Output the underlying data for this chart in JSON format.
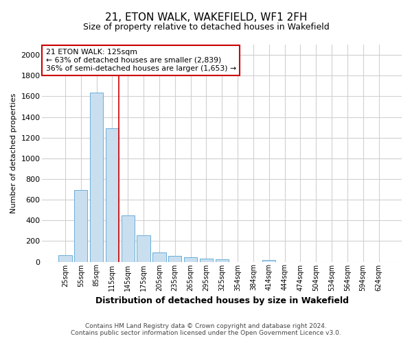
{
  "title": "21, ETON WALK, WAKEFIELD, WF1 2FH",
  "subtitle": "Size of property relative to detached houses in Wakefield",
  "xlabel": "Distribution of detached houses by size in Wakefield",
  "ylabel": "Number of detached properties",
  "bar_color": "#c9dff0",
  "bar_edge_color": "#6aaed6",
  "categories": [
    "25sqm",
    "55sqm",
    "85sqm",
    "115sqm",
    "145sqm",
    "175sqm",
    "205sqm",
    "235sqm",
    "265sqm",
    "295sqm",
    "325sqm",
    "354sqm",
    "384sqm",
    "414sqm",
    "444sqm",
    "474sqm",
    "504sqm",
    "534sqm",
    "564sqm",
    "594sqm",
    "624sqm"
  ],
  "values": [
    65,
    695,
    1635,
    1290,
    445,
    255,
    90,
    55,
    40,
    28,
    20,
    0,
    0,
    18,
    0,
    0,
    0,
    0,
    0,
    0,
    0
  ],
  "ylim": [
    0,
    2100
  ],
  "yticks": [
    0,
    200,
    400,
    600,
    800,
    1000,
    1200,
    1400,
    1600,
    1800,
    2000
  ],
  "property_bar_index": 3,
  "annotation_line1": "21 ETON WALK: 125sqm",
  "annotation_line2": "← 63% of detached houses are smaller (2,839)",
  "annotation_line3": "36% of semi-detached houses are larger (1,653) →",
  "vline_color": "#cc0000",
  "annotation_box_color": "#ffffff",
  "annotation_box_edge": "#cc0000",
  "footer_line1": "Contains HM Land Registry data © Crown copyright and database right 2024.",
  "footer_line2": "Contains public sector information licensed under the Open Government Licence v3.0.",
  "background_color": "#ffffff",
  "grid_color": "#d0d0d0"
}
